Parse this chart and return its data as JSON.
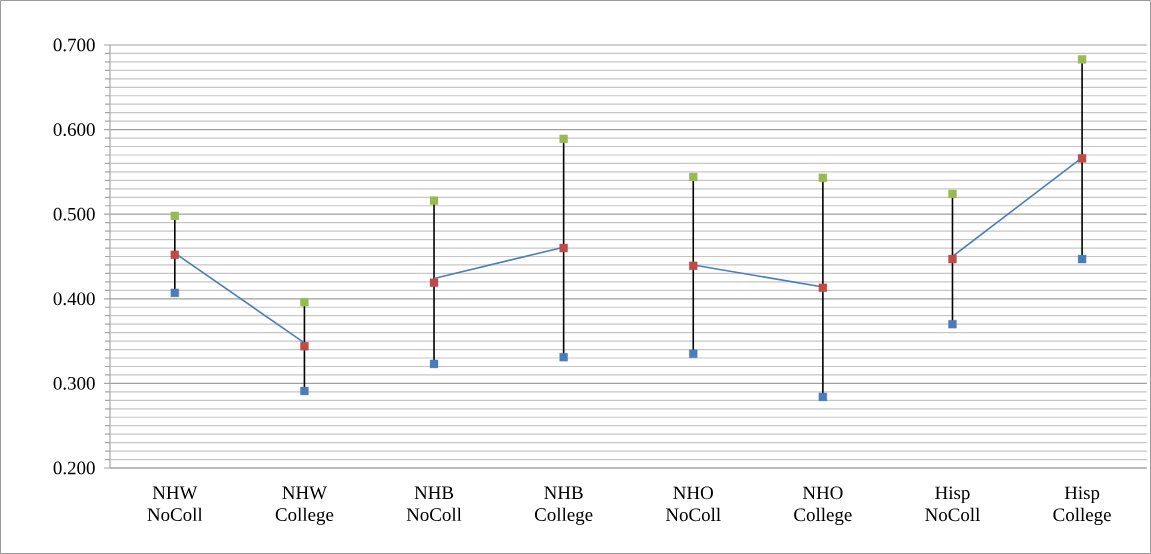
{
  "chart_data": {
    "type": "line",
    "categories": [
      "NHW NoColl",
      "NHW College",
      "NHB NoColl",
      "NHB College",
      "NHO NoColl",
      "NHO College",
      "Hisp NoColl",
      "Hisp College"
    ],
    "ylim": [
      0.2,
      0.7
    ],
    "yticks": [
      {
        "value": 0.2,
        "label": "0.200"
      },
      {
        "value": 0.21,
        "label": null
      },
      {
        "value": 0.22,
        "label": null
      },
      {
        "value": 0.23,
        "label": null
      },
      {
        "value": 0.24,
        "label": null
      },
      {
        "value": 0.25,
        "label": null
      },
      {
        "value": 0.26,
        "label": null
      },
      {
        "value": 0.27,
        "label": null
      },
      {
        "value": 0.28,
        "label": null
      },
      {
        "value": 0.29,
        "label": null
      },
      {
        "value": 0.3,
        "label": "0.300"
      },
      {
        "value": 0.31,
        "label": null
      },
      {
        "value": 0.32,
        "label": null
      },
      {
        "value": 0.33,
        "label": null
      },
      {
        "value": 0.34,
        "label": null
      },
      {
        "value": 0.35,
        "label": null
      },
      {
        "value": 0.36,
        "label": null
      },
      {
        "value": 0.37,
        "label": null
      },
      {
        "value": 0.38,
        "label": null
      },
      {
        "value": 0.39,
        "label": null
      },
      {
        "value": 0.4,
        "label": "0.400"
      },
      {
        "value": 0.41,
        "label": null
      },
      {
        "value": 0.42,
        "label": null
      },
      {
        "value": 0.43,
        "label": null
      },
      {
        "value": 0.44,
        "label": null
      },
      {
        "value": 0.45,
        "label": null
      },
      {
        "value": 0.46,
        "label": null
      },
      {
        "value": 0.47,
        "label": null
      },
      {
        "value": 0.48,
        "label": null
      },
      {
        "value": 0.49,
        "label": null
      },
      {
        "value": 0.5,
        "label": "0.500"
      },
      {
        "value": 0.51,
        "label": null
      },
      {
        "value": 0.52,
        "label": null
      },
      {
        "value": 0.53,
        "label": null
      },
      {
        "value": 0.54,
        "label": null
      },
      {
        "value": 0.55,
        "label": null
      },
      {
        "value": 0.56,
        "label": null
      },
      {
        "value": 0.57,
        "label": null
      },
      {
        "value": 0.58,
        "label": null
      },
      {
        "value": 0.59,
        "label": null
      },
      {
        "value": 0.6,
        "label": "0.600"
      },
      {
        "value": 0.61,
        "label": null
      },
      {
        "value": 0.62,
        "label": null
      },
      {
        "value": 0.63,
        "label": null
      },
      {
        "value": 0.64,
        "label": null
      },
      {
        "value": 0.65,
        "label": null
      },
      {
        "value": 0.66,
        "label": null
      },
      {
        "value": 0.67,
        "label": null
      },
      {
        "value": 0.68,
        "label": null
      },
      {
        "value": 0.69,
        "label": null
      },
      {
        "value": 0.7,
        "label": "0.700"
      }
    ],
    "grid": "y",
    "series": [
      {
        "color": "#4a7ebb",
        "marker": "none",
        "values": [
          0.454,
          0.348,
          null,
          null,
          null,
          null,
          null,
          null
        ]
      },
      {
        "color": "#4a7ebb",
        "marker": "none",
        "values": [
          null,
          null,
          0.424,
          0.461,
          null,
          null,
          null,
          null
        ]
      },
      {
        "color": "#4a7ebb",
        "marker": "none",
        "values": [
          null,
          null,
          null,
          null,
          0.44,
          0.414,
          null,
          null
        ]
      },
      {
        "color": "#4a7ebb",
        "marker": "none",
        "values": [
          null,
          null,
          null,
          null,
          null,
          null,
          0.45,
          0.567
        ]
      },
      {
        "type": "scatter",
        "color": "#be4b48",
        "marker": "square",
        "values": [
          0.452,
          0.344,
          0.419,
          0.46,
          0.439,
          0.413,
          0.447,
          0.566
        ],
        "errors": [
          [
            0.045,
            0.045
          ],
          [
            0.05,
            0.05
          ],
          [
            0.095,
            0.095
          ],
          [
            0.13,
            0.13
          ],
          [
            0.105,
            0.105
          ],
          [
            0.13,
            0.13
          ],
          [
            0.075,
            0.075
          ],
          [
            0.12,
            0.12
          ]
        ]
      },
      {
        "type": "scatter",
        "color": "#98b954",
        "marker": "square",
        "values": [
          0.498,
          0.396,
          0.516,
          0.589,
          0.544,
          0.543,
          0.524,
          0.683
        ]
      },
      {
        "type": "scatter",
        "color": "#4a7ebb",
        "marker": "square",
        "values": [
          0.407,
          0.291,
          0.323,
          0.331,
          0.335,
          0.284,
          0.37,
          0.447
        ]
      }
    ]
  }
}
